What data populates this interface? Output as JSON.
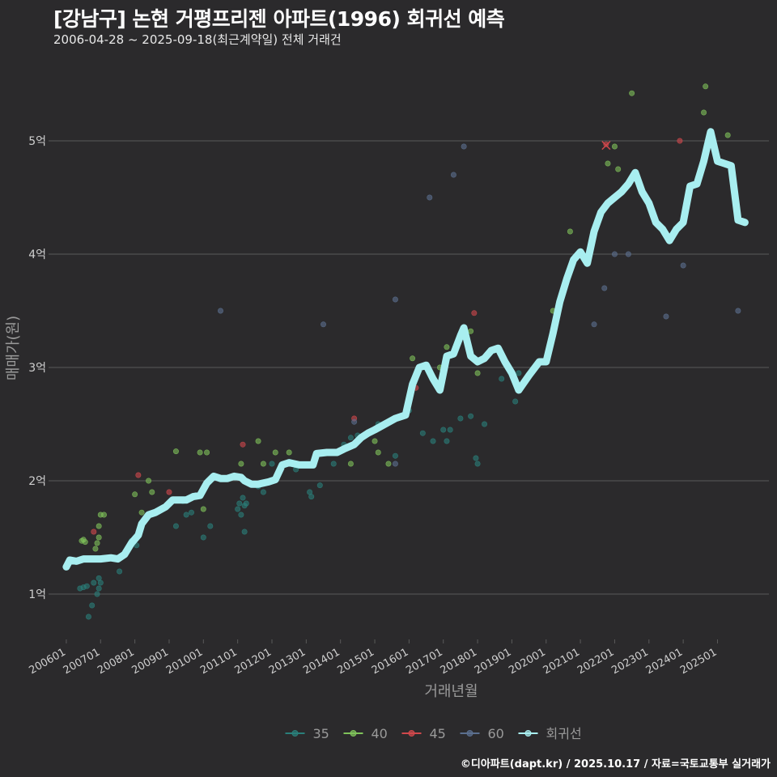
{
  "title": "[강남구] 논현 거평프리젠 아파트(1996) 회귀선 예측",
  "subtitle": "2006-04-28 ~ 2025-09-18(최근계약일) 전체 거래건",
  "footer": "©디아파트(dapt.kr) / 2025.10.17 / 자료=국토교통부 실거래가",
  "colors": {
    "background": "#2b2a2c",
    "grid": "#5a5a5a",
    "text": "#cfcfcf",
    "s35": "#2a7f7a",
    "s40": "#7fc25a",
    "s45": "#d0484c",
    "s60": "#5b6f8f",
    "regression": "#a8eef0"
  },
  "chart_data": {
    "type": "scatter",
    "xlabel": "거래년월",
    "ylabel": "매매가(원)",
    "xlim": [
      2005.6,
      2026.5
    ],
    "ylim": [
      0.6,
      5.6
    ],
    "yticks": [
      {
        "value": 1,
        "label": "1억"
      },
      {
        "value": 2,
        "label": "2억"
      },
      {
        "value": 3,
        "label": "3억"
      },
      {
        "value": 4,
        "label": "4억"
      },
      {
        "value": 5,
        "label": "5억"
      }
    ],
    "xticks": [
      {
        "value": 2006.0,
        "label": "200601"
      },
      {
        "value": 2007.0,
        "label": "200701"
      },
      {
        "value": 2008.0,
        "label": "200801"
      },
      {
        "value": 2009.0,
        "label": "200901"
      },
      {
        "value": 2010.0,
        "label": "201001"
      },
      {
        "value": 2011.0,
        "label": "201101"
      },
      {
        "value": 2012.0,
        "label": "201201"
      },
      {
        "value": 2013.0,
        "label": "201301"
      },
      {
        "value": 2014.0,
        "label": "201401"
      },
      {
        "value": 2015.0,
        "label": "201501"
      },
      {
        "value": 2016.0,
        "label": "201601"
      },
      {
        "value": 2017.0,
        "label": "201701"
      },
      {
        "value": 2018.0,
        "label": "201801"
      },
      {
        "value": 2019.0,
        "label": "201901"
      },
      {
        "value": 2020.0,
        "label": "202001"
      },
      {
        "value": 2021.0,
        "label": "202101"
      },
      {
        "value": 2022.0,
        "label": "202201"
      },
      {
        "value": 2023.0,
        "label": "202301"
      },
      {
        "value": 2024.0,
        "label": "202401"
      },
      {
        "value": 2025.0,
        "label": "202501"
      }
    ],
    "legend": {
      "position": "bottom",
      "entries": [
        {
          "key": "s35",
          "label": "35"
        },
        {
          "key": "s40",
          "label": "40"
        },
        {
          "key": "s45",
          "label": "45"
        },
        {
          "key": "s60",
          "label": "60"
        },
        {
          "key": "regression",
          "label": "회귀선"
        }
      ]
    },
    "series": [
      {
        "name": "35",
        "key": "s35",
        "points": [
          [
            2006.4,
            1.05
          ],
          [
            2006.5,
            1.06
          ],
          [
            2006.6,
            1.07
          ],
          [
            2006.8,
            1.1
          ],
          [
            2006.9,
            1.0
          ],
          [
            2006.95,
            1.05
          ],
          [
            2007.0,
            1.1
          ],
          [
            2006.65,
            0.8
          ],
          [
            2006.75,
            0.9
          ],
          [
            2006.95,
            1.14
          ],
          [
            2007.55,
            1.2
          ],
          [
            2007.9,
            1.47
          ],
          [
            2008.05,
            1.43
          ],
          [
            2009.2,
            1.6
          ],
          [
            2009.4,
            1.82
          ],
          [
            2009.5,
            1.7
          ],
          [
            2009.65,
            1.72
          ],
          [
            2010.0,
            1.5
          ],
          [
            2010.2,
            1.6
          ],
          [
            2011.0,
            1.75
          ],
          [
            2011.05,
            1.8
          ],
          [
            2011.15,
            1.85
          ],
          [
            2011.2,
            1.78
          ],
          [
            2011.25,
            1.8
          ],
          [
            2011.1,
            1.7
          ],
          [
            2011.2,
            1.55
          ],
          [
            2011.6,
            1.95
          ],
          [
            2011.75,
            1.9
          ],
          [
            2012.0,
            2.15
          ],
          [
            2012.5,
            2.15
          ],
          [
            2012.7,
            2.1
          ],
          [
            2013.1,
            1.9
          ],
          [
            2013.15,
            1.86
          ],
          [
            2013.4,
            1.96
          ],
          [
            2013.8,
            2.15
          ],
          [
            2014.1,
            2.32
          ],
          [
            2014.3,
            2.38
          ],
          [
            2014.5,
            2.4
          ],
          [
            2015.1,
            2.5
          ],
          [
            2015.6,
            2.22
          ],
          [
            2016.0,
            2.62
          ],
          [
            2016.4,
            2.42
          ],
          [
            2016.7,
            2.35
          ],
          [
            2017.0,
            2.45
          ],
          [
            2017.1,
            2.35
          ],
          [
            2017.2,
            2.45
          ],
          [
            2017.5,
            2.55
          ],
          [
            2017.8,
            2.57
          ],
          [
            2017.95,
            2.2
          ],
          [
            2018.0,
            2.15
          ],
          [
            2018.2,
            2.5
          ],
          [
            2018.7,
            2.9
          ],
          [
            2019.1,
            2.7
          ],
          [
            2019.2,
            2.95
          ]
        ]
      },
      {
        "name": "40",
        "key": "s40",
        "points": [
          [
            2006.45,
            1.47
          ],
          [
            2006.5,
            1.48
          ],
          [
            2006.55,
            1.46
          ],
          [
            2006.9,
            1.45
          ],
          [
            2006.95,
            1.5
          ],
          [
            2007.0,
            1.7
          ],
          [
            2007.1,
            1.7
          ],
          [
            2006.85,
            1.4
          ],
          [
            2006.95,
            1.6
          ],
          [
            2008.0,
            1.88
          ],
          [
            2008.2,
            1.72
          ],
          [
            2008.4,
            2.0
          ],
          [
            2008.5,
            1.9
          ],
          [
            2009.2,
            2.26
          ],
          [
            2009.9,
            2.25
          ],
          [
            2010.1,
            2.25
          ],
          [
            2010.0,
            1.75
          ],
          [
            2011.1,
            2.15
          ],
          [
            2011.6,
            2.35
          ],
          [
            2011.75,
            2.15
          ],
          [
            2012.1,
            2.25
          ],
          [
            2012.5,
            2.25
          ],
          [
            2013.5,
            2.25
          ],
          [
            2014.3,
            2.15
          ],
          [
            2014.5,
            2.35
          ],
          [
            2015.0,
            2.35
          ],
          [
            2015.1,
            2.25
          ],
          [
            2015.4,
            2.15
          ],
          [
            2016.1,
            3.08
          ],
          [
            2016.9,
            3.0
          ],
          [
            2017.1,
            3.18
          ],
          [
            2017.8,
            3.32
          ],
          [
            2018.0,
            2.95
          ],
          [
            2020.2,
            3.5
          ],
          [
            2020.6,
            3.8
          ],
          [
            2020.7,
            4.2
          ],
          [
            2021.8,
            4.8
          ],
          [
            2022.0,
            4.95
          ],
          [
            2022.1,
            4.75
          ],
          [
            2022.5,
            5.42
          ],
          [
            2024.6,
            5.25
          ],
          [
            2024.65,
            5.48
          ],
          [
            2025.3,
            5.05
          ]
        ]
      },
      {
        "name": "45",
        "key": "s45",
        "points": [
          [
            2006.8,
            1.55
          ],
          [
            2008.1,
            2.05
          ],
          [
            2009.0,
            1.9
          ],
          [
            2011.15,
            2.32
          ],
          [
            2014.4,
            2.55
          ],
          [
            2016.2,
            2.82
          ],
          [
            2017.9,
            3.48
          ],
          [
            2021.75,
            4.97
          ],
          [
            2023.9,
            5.0
          ]
        ]
      },
      {
        "name": "60",
        "key": "s60",
        "points": [
          [
            2010.5,
            3.5
          ],
          [
            2013.5,
            3.38
          ],
          [
            2014.4,
            2.52
          ],
          [
            2015.6,
            3.6
          ],
          [
            2016.6,
            4.5
          ],
          [
            2017.3,
            4.7
          ],
          [
            2017.6,
            4.95
          ],
          [
            2021.4,
            3.38
          ],
          [
            2021.7,
            3.7
          ],
          [
            2022.0,
            4.0
          ],
          [
            2022.4,
            4.0
          ],
          [
            2023.5,
            3.45
          ],
          [
            2024.0,
            3.9
          ],
          [
            2025.6,
            3.5
          ],
          [
            2015.6,
            2.15
          ]
        ]
      }
    ],
    "regression": [
      [
        2006.0,
        1.24
      ],
      [
        2006.1,
        1.3
      ],
      [
        2006.3,
        1.29
      ],
      [
        2006.5,
        1.31
      ],
      [
        2007.0,
        1.31
      ],
      [
        2007.3,
        1.32
      ],
      [
        2007.5,
        1.31
      ],
      [
        2007.7,
        1.35
      ],
      [
        2007.9,
        1.45
      ],
      [
        2008.1,
        1.52
      ],
      [
        2008.2,
        1.62
      ],
      [
        2008.4,
        1.7
      ],
      [
        2008.6,
        1.72
      ],
      [
        2008.9,
        1.77
      ],
      [
        2009.1,
        1.83
      ],
      [
        2009.5,
        1.83
      ],
      [
        2009.7,
        1.86
      ],
      [
        2009.9,
        1.87
      ],
      [
        2010.1,
        1.98
      ],
      [
        2010.3,
        2.04
      ],
      [
        2010.5,
        2.02
      ],
      [
        2010.7,
        2.02
      ],
      [
        2010.9,
        2.04
      ],
      [
        2011.1,
        2.03
      ],
      [
        2011.2,
        2.0
      ],
      [
        2011.4,
        1.97
      ],
      [
        2011.6,
        1.97
      ],
      [
        2011.9,
        1.99
      ],
      [
        2012.1,
        2.01
      ],
      [
        2012.3,
        2.14
      ],
      [
        2012.5,
        2.16
      ],
      [
        2012.8,
        2.14
      ],
      [
        2013.0,
        2.14
      ],
      [
        2013.2,
        2.14
      ],
      [
        2013.3,
        2.24
      ],
      [
        2013.6,
        2.25
      ],
      [
        2013.9,
        2.25
      ],
      [
        2014.1,
        2.28
      ],
      [
        2014.4,
        2.32
      ],
      [
        2014.6,
        2.38
      ],
      [
        2014.8,
        2.42
      ],
      [
        2015.0,
        2.45
      ],
      [
        2015.3,
        2.5
      ],
      [
        2015.6,
        2.55
      ],
      [
        2015.9,
        2.58
      ],
      [
        2016.1,
        2.85
      ],
      [
        2016.3,
        3.0
      ],
      [
        2016.5,
        3.02
      ],
      [
        2016.7,
        2.9
      ],
      [
        2016.9,
        2.8
      ],
      [
        2017.1,
        3.1
      ],
      [
        2017.3,
        3.12
      ],
      [
        2017.5,
        3.28
      ],
      [
        2017.6,
        3.35
      ],
      [
        2017.8,
        3.1
      ],
      [
        2018.0,
        3.05
      ],
      [
        2018.2,
        3.08
      ],
      [
        2018.4,
        3.15
      ],
      [
        2018.6,
        3.17
      ],
      [
        2018.8,
        3.05
      ],
      [
        2019.0,
        2.95
      ],
      [
        2019.2,
        2.8
      ],
      [
        2019.5,
        2.93
      ],
      [
        2019.8,
        3.05
      ],
      [
        2020.0,
        3.05
      ],
      [
        2020.2,
        3.3
      ],
      [
        2020.4,
        3.58
      ],
      [
        2020.6,
        3.78
      ],
      [
        2020.8,
        3.95
      ],
      [
        2021.0,
        4.02
      ],
      [
        2021.2,
        3.92
      ],
      [
        2021.4,
        4.2
      ],
      [
        2021.6,
        4.37
      ],
      [
        2021.8,
        4.45
      ],
      [
        2022.0,
        4.5
      ],
      [
        2022.2,
        4.55
      ],
      [
        2022.4,
        4.62
      ],
      [
        2022.6,
        4.72
      ],
      [
        2022.8,
        4.55
      ],
      [
        2023.0,
        4.45
      ],
      [
        2023.2,
        4.28
      ],
      [
        2023.4,
        4.22
      ],
      [
        2023.6,
        4.12
      ],
      [
        2023.8,
        4.22
      ],
      [
        2024.0,
        4.28
      ],
      [
        2024.2,
        4.6
      ],
      [
        2024.4,
        4.62
      ],
      [
        2024.6,
        4.82
      ],
      [
        2024.8,
        5.08
      ],
      [
        2025.0,
        4.82
      ],
      [
        2025.2,
        4.8
      ],
      [
        2025.4,
        4.78
      ],
      [
        2025.6,
        4.3
      ],
      [
        2025.8,
        4.28
      ]
    ],
    "annotations": [
      {
        "type": "cross",
        "x": 2021.75,
        "y": 4.96,
        "color": "#d0484c"
      }
    ]
  }
}
